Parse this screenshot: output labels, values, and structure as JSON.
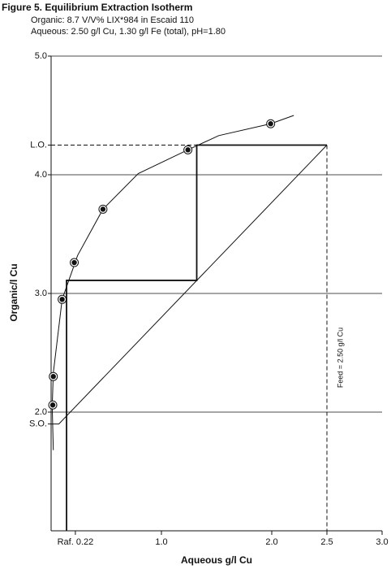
{
  "chart_data": {
    "type": "isotherm",
    "title": "Figure 5. Equilibrium Extraction Isotherm",
    "subtitle": [
      "Organic: 8.7 V/V% LIX*984 in Escaid 110",
      "Aqueous: 2.50 g/l Cu, 1.30 g/l Fe (total), pH=1.80"
    ],
    "x_label": "Aqueous g/l Cu",
    "y_label": "Organic/l Cu",
    "annotation": "Feed = 2.50 g/l Cu",
    "xlim": [
      0,
      3.0
    ],
    "ylim": [
      1.0,
      5.0
    ],
    "xticks": [
      {
        "value": 0.22,
        "label": "Raf. 0.22"
      },
      {
        "value": 1.0,
        "label": "1.0"
      },
      {
        "value": 2.0,
        "label": "2.0"
      },
      2.5,
      {
        "value": 3.0,
        "label": "3.0"
      }
    ],
    "yticks": [
      {
        "value": 1.9,
        "label": "S.O."
      },
      {
        "value": 2.0,
        "label": "2.0"
      },
      {
        "value": 3.0,
        "label": "3.0"
      },
      {
        "value": 4.0,
        "label": "4.0"
      },
      {
        "value": 4.25,
        "label": "L.O."
      },
      {
        "value": 5.0,
        "label": "5.0"
      }
    ],
    "grid": true,
    "color": "#111111",
    "points": {
      "x": [
        0.015,
        0.02,
        0.1,
        0.21,
        0.47,
        1.24,
        1.99
      ],
      "y": [
        2.06,
        2.3,
        2.95,
        3.26,
        3.71,
        4.21,
        4.43
      ]
    },
    "isotherm": {
      "x": [
        0.02,
        0.01,
        0.02,
        0.1,
        0.24,
        0.47,
        0.79,
        1.24,
        1.52,
        1.99,
        2.2
      ],
      "y": [
        1.68,
        2.05,
        2.33,
        2.95,
        3.32,
        3.71,
        4.01,
        4.21,
        4.33,
        4.43,
        4.5
      ]
    },
    "operating_line": {
      "x": [
        0,
        0.07,
        2.5
      ],
      "y": [
        1.9,
        1.9,
        4.25
      ]
    },
    "stairs": {
      "x": [
        2.5,
        1.32,
        1.32,
        0.14,
        0.14
      ],
      "y": [
        4.25,
        4.25,
        3.11,
        3.11,
        1.0
      ]
    }
  }
}
